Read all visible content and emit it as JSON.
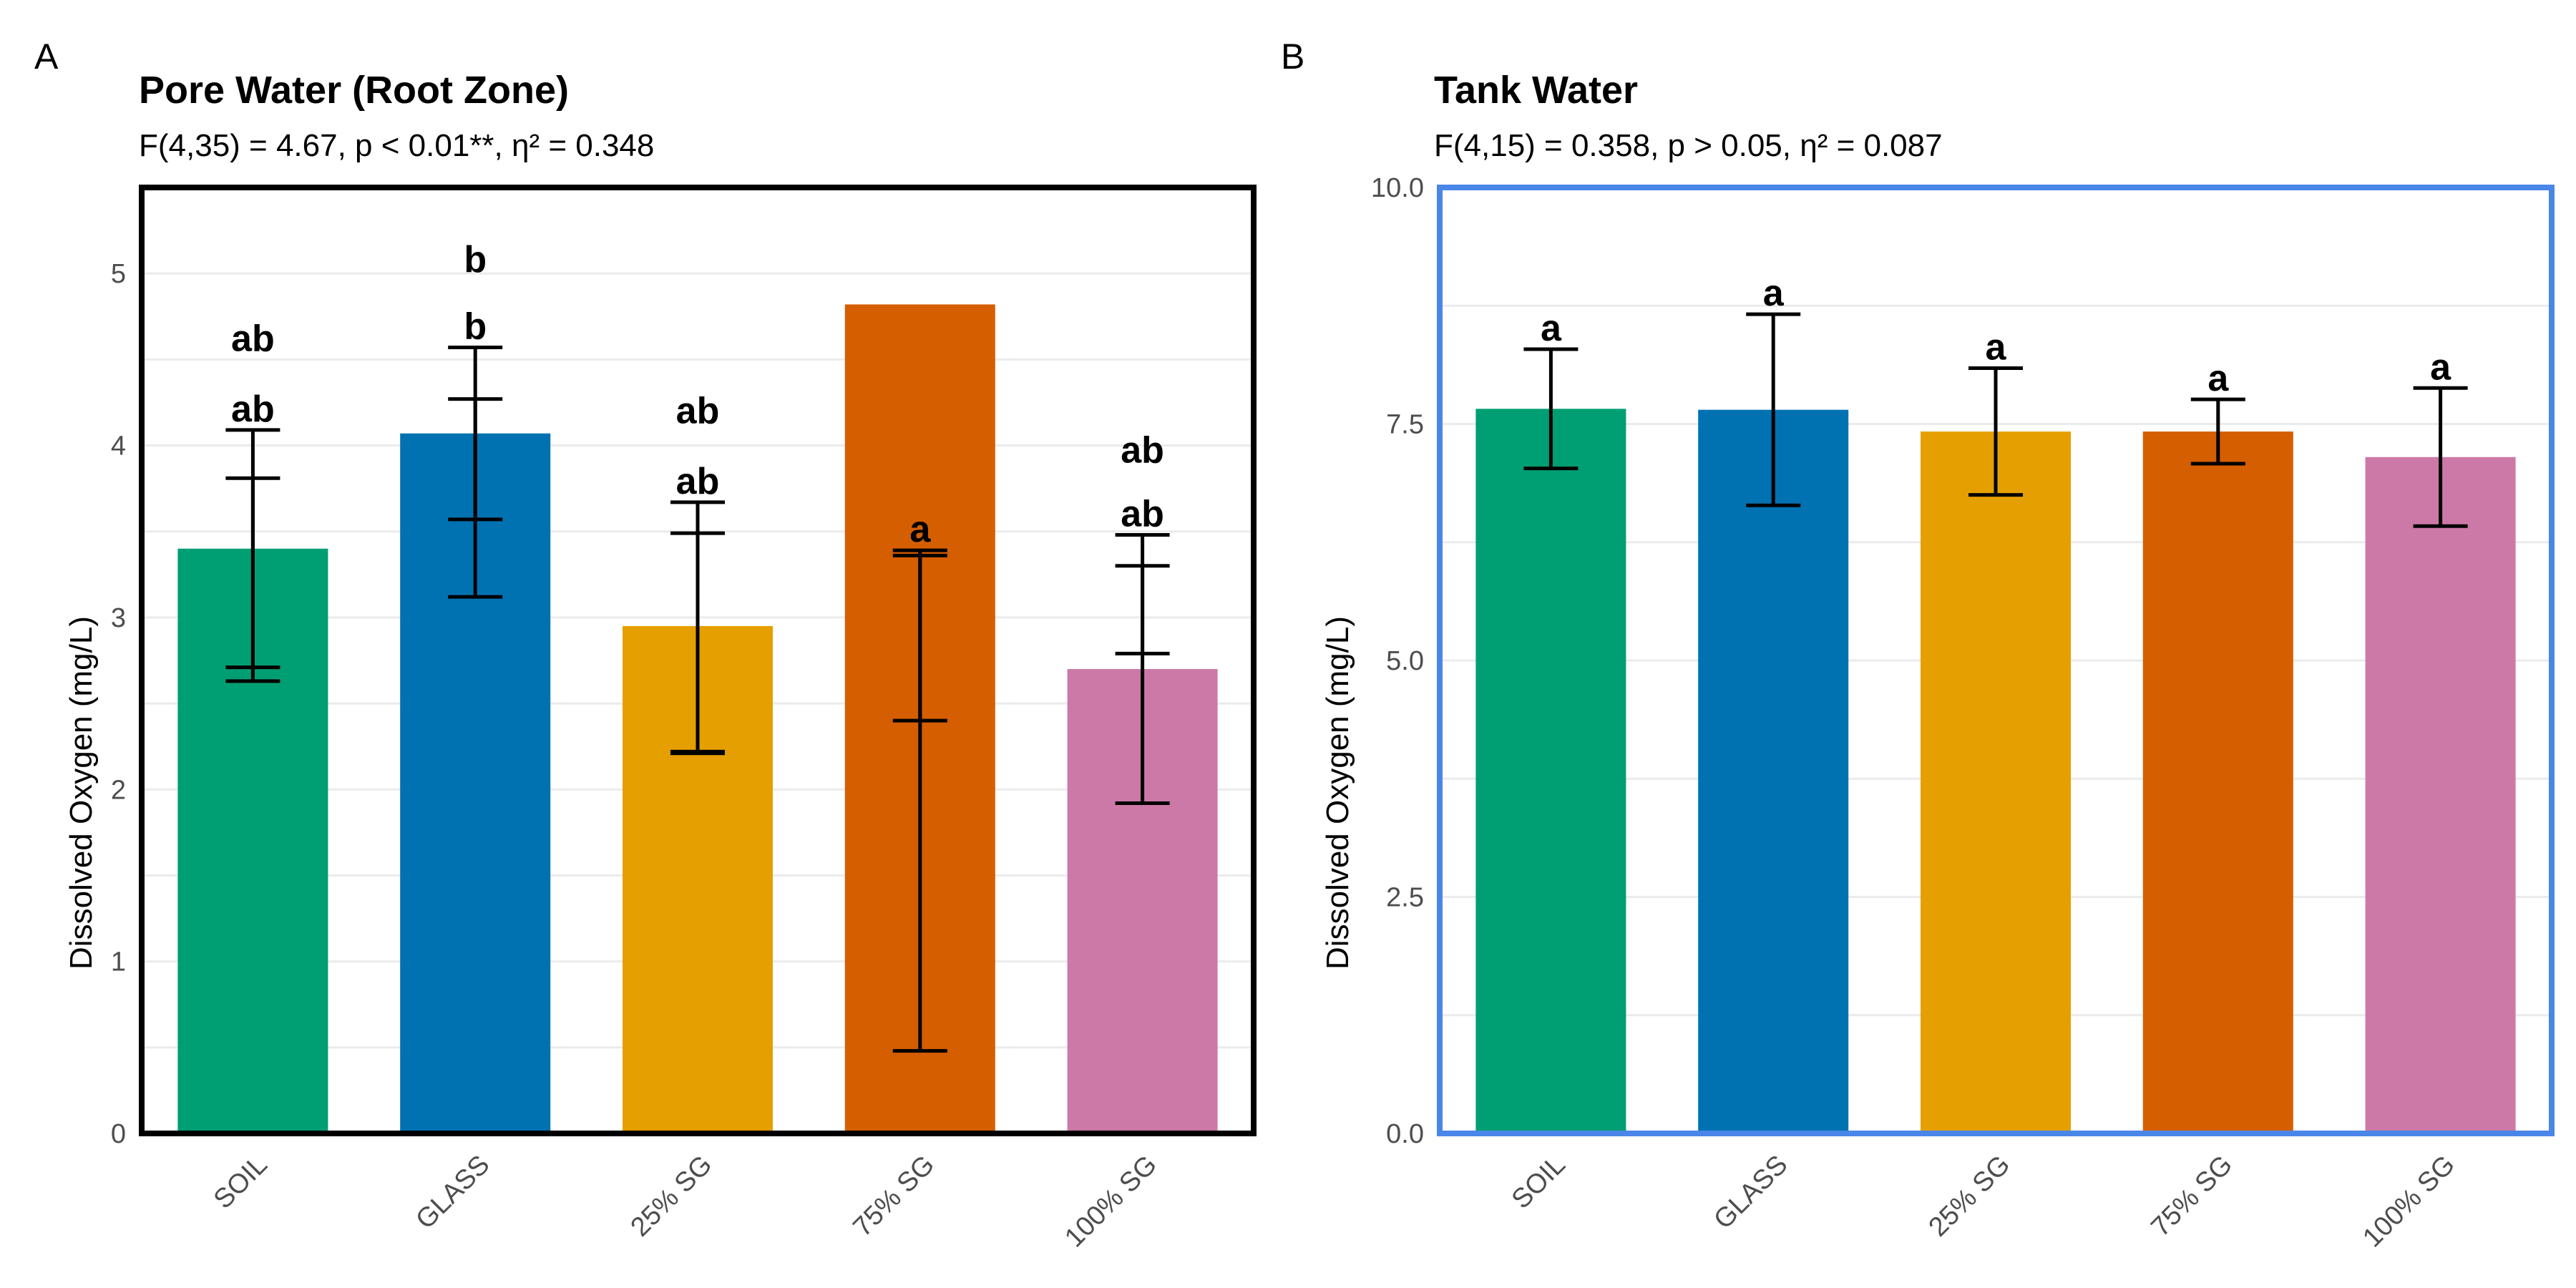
{
  "colors": {
    "SOIL": "#009E73",
    "GLASS": "#0072B2",
    "25% SG": "#E69F00",
    "75% SG": "#D55E00",
    "100% SG": "#CC79A7",
    "panel_b_border": "#4A86E8",
    "grid": "#EBEBEB"
  },
  "chart_data": [
    {
      "panel_tag": "A",
      "type": "bar",
      "title": "Pore Water (Root Zone)",
      "subtitle": "F(4,35) = 4.67, p < 0.01**, η² = 0.348",
      "xlabel": "",
      "ylabel": "Dissolved Oxygen (mg/L)",
      "ylim": [
        0,
        5.5
      ],
      "yticks": [
        0,
        1,
        2,
        3,
        4,
        5
      ],
      "ytick_labels": [
        "0",
        "1",
        "2",
        "3",
        "4",
        "5"
      ],
      "grid": true,
      "categories": [
        "SOIL",
        "GLASS",
        "25% SG",
        "75% SG",
        "100% SG"
      ],
      "values": [
        3.4,
        4.07,
        2.95,
        4.82,
        2.7
      ],
      "error_bars": [
        [
          {
            "low": 2.63,
            "high": 4.09
          },
          {
            "low": 2.71,
            "high": 3.81
          }
        ],
        [
          {
            "low": 3.57,
            "high": 4.57
          },
          {
            "low": 3.12,
            "high": 4.27
          }
        ],
        [
          {
            "low": 2.21,
            "high": 3.67
          },
          {
            "low": 2.22,
            "high": 3.49
          }
        ],
        [
          {
            "low": 2.4,
            "high": 3.39
          },
          {
            "low": 0.48,
            "high": 3.36
          }
        ],
        [
          {
            "low": 2.79,
            "high": 3.48
          },
          {
            "low": 1.92,
            "high": 3.3
          }
        ]
      ],
      "letters": [
        [
          "ab",
          "ab"
        ],
        [
          "b",
          "b"
        ],
        [
          "ab",
          "ab"
        ],
        [
          "a",
          "a"
        ],
        [
          "ab",
          "ab"
        ]
      ],
      "letter_anchors": [
        [
          4.09,
          4.5
        ],
        [
          4.57,
          4.96
        ],
        [
          3.67,
          4.08
        ],
        [
          3.39,
          3.39
        ],
        [
          3.48,
          3.85
        ]
      ]
    },
    {
      "panel_tag": "B",
      "type": "bar",
      "title": "Tank Water",
      "subtitle": "F(4,15) = 0.358, p > 0.05, η² = 0.087",
      "xlabel": "",
      "ylabel": "Dissolved Oxygen (mg/L)",
      "ylim": [
        0,
        10
      ],
      "yticks": [
        0,
        2.5,
        5,
        7.5,
        10
      ],
      "ytick_labels": [
        "0.0",
        "2.5",
        "5.0",
        "7.5",
        "10.0"
      ],
      "grid": true,
      "categories": [
        "SOIL",
        "GLASS",
        "25% SG",
        "75% SG",
        "100% SG"
      ],
      "values": [
        7.66,
        7.65,
        7.42,
        7.42,
        7.15
      ],
      "error_bars": [
        [
          {
            "low": 7.03,
            "high": 8.29
          }
        ],
        [
          {
            "low": 6.64,
            "high": 8.66
          }
        ],
        [
          {
            "low": 6.75,
            "high": 8.09
          }
        ],
        [
          {
            "low": 7.08,
            "high": 7.76
          }
        ],
        [
          {
            "low": 6.42,
            "high": 7.88
          }
        ]
      ],
      "letters": [
        [
          "a"
        ],
        [
          "a"
        ],
        [
          "a"
        ],
        [
          "a"
        ],
        [
          "a"
        ]
      ],
      "letter_anchors": [
        [
          8.29
        ],
        [
          8.66
        ],
        [
          8.09
        ],
        [
          7.76
        ],
        [
          7.88
        ]
      ]
    }
  ]
}
